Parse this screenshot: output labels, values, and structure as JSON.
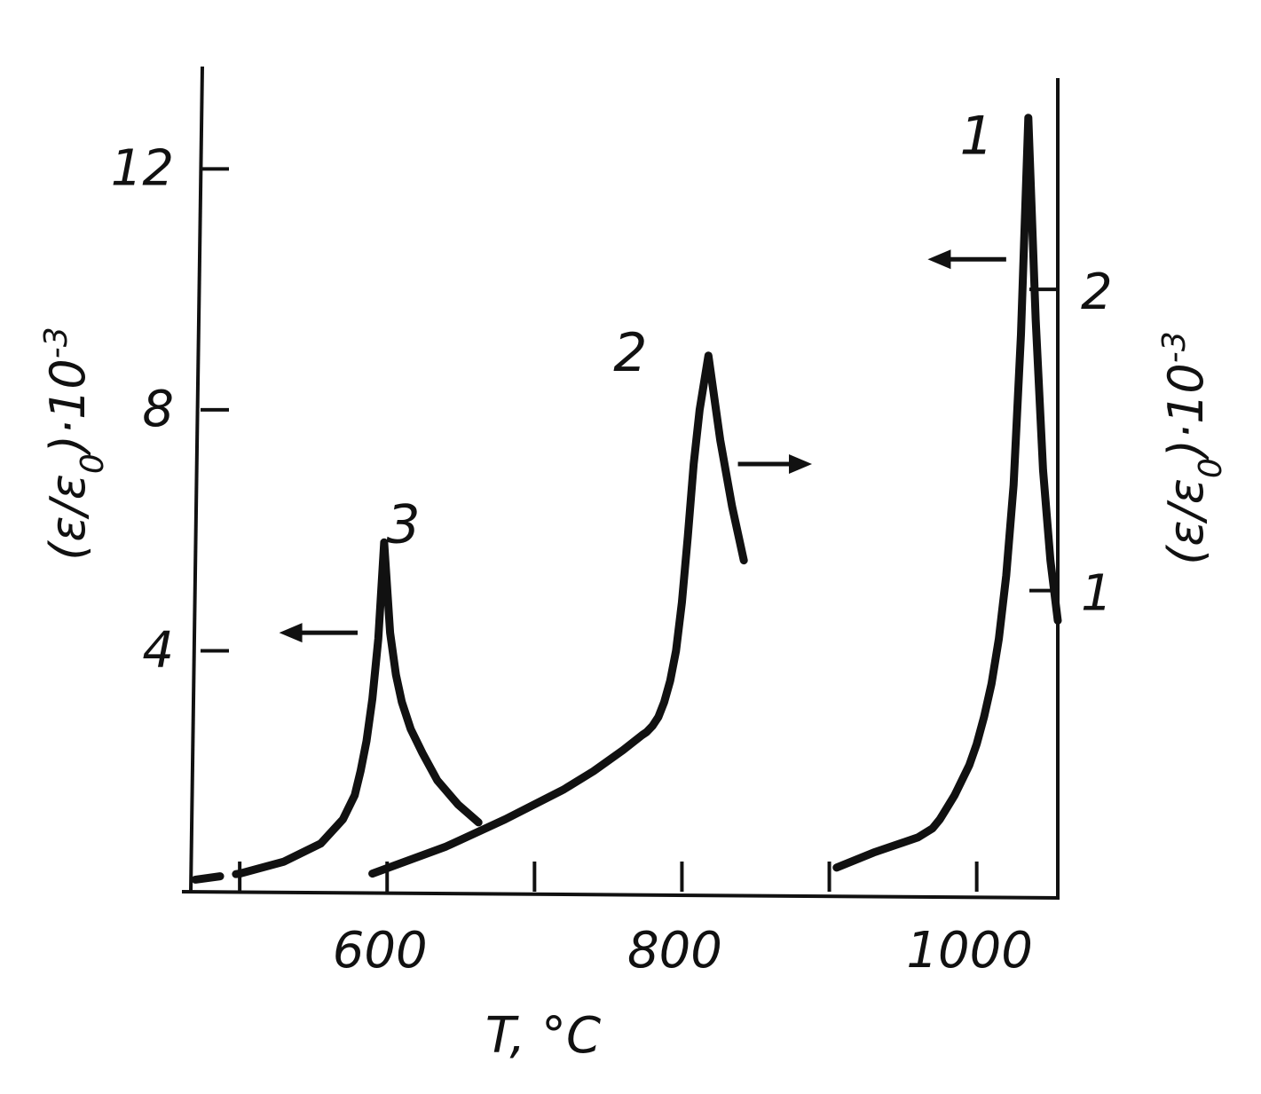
{
  "chart_data": {
    "type": "line",
    "xlabel": "T, °C",
    "ylabel_left": {
      "text": "(ε/ε",
      "sub": "0",
      "mid": ")·10",
      "sup": "-3"
    },
    "ylabel_right": {
      "text": "(ε/ε",
      "sub": "0",
      "mid": ")·10",
      "sup": "-3"
    },
    "x_ticks": [
      600,
      800,
      1000
    ],
    "x_minor_ticks": [
      500,
      700,
      900
    ],
    "xlim": [
      465,
      1055
    ],
    "y_left_ticks": [
      4,
      8,
      12
    ],
    "y_left_lim": [
      0,
      13.7
    ],
    "y_right_ticks": [
      1,
      2
    ],
    "y_right_lim": [
      0,
      2.74
    ],
    "grid": false,
    "series": [
      {
        "name": "1",
        "axis": "right",
        "dashed_x_max": 900,
        "x": [
          905,
          930,
          960,
          970,
          975,
          980,
          985,
          990,
          995,
          1000,
          1005,
          1010,
          1015,
          1020,
          1025,
          1030,
          1035,
          1040,
          1045,
          1050,
          1055
        ],
        "y": [
          0.08,
          0.13,
          0.18,
          0.21,
          0.24,
          0.28,
          0.32,
          0.37,
          0.42,
          0.49,
          0.58,
          0.69,
          0.84,
          1.05,
          1.35,
          1.85,
          2.57,
          1.9,
          1.4,
          1.1,
          0.9
        ]
      },
      {
        "name": "2",
        "axis": "right",
        "dashed_x_max": 600,
        "x": [
          590,
          640,
          680,
          720,
          740,
          760,
          773,
          776,
          780,
          784,
          788,
          792,
          796,
          800,
          804,
          808,
          812,
          818,
          826,
          834,
          842
        ],
        "y": [
          0.06,
          0.15,
          0.24,
          0.34,
          0.4,
          0.47,
          0.52,
          0.53,
          0.55,
          0.58,
          0.63,
          0.7,
          0.8,
          0.96,
          1.18,
          1.42,
          1.6,
          1.78,
          1.5,
          1.28,
          1.1
        ]
      },
      {
        "name": "3",
        "axis": "left",
        "dashed_x_max": 515,
        "x": [
          470,
          500,
          530,
          555,
          570,
          578,
          582,
          586,
          590,
          594,
          598,
          602,
          606,
          610,
          616,
          624,
          634,
          648,
          662
        ],
        "y": [
          0.2,
          0.3,
          0.5,
          0.8,
          1.2,
          1.6,
          2.0,
          2.5,
          3.2,
          4.2,
          5.8,
          4.3,
          3.6,
          3.15,
          2.7,
          2.3,
          1.85,
          1.45,
          1.15
        ]
      }
    ],
    "annotations": [
      {
        "text": "1",
        "x": 1000,
        "axis": "right",
        "y": 2.45
      },
      {
        "text": "2",
        "x": 765,
        "axis": "right",
        "y": 1.73
      },
      {
        "text": "3",
        "x": 611,
        "axis": "left",
        "y": 5.8
      }
    ],
    "arrows": [
      {
        "series": "1",
        "direction": "left",
        "from_x": 1020,
        "to_x": 980,
        "axis": "left",
        "y": 10.5
      },
      {
        "series": "2",
        "direction": "right",
        "from_x": 838,
        "to_x": 875,
        "axis": "right",
        "y": 1.42
      },
      {
        "series": "3",
        "direction": "left",
        "from_x": 580,
        "to_x": 540,
        "axis": "left",
        "y": 4.3
      }
    ],
    "colors": {
      "ink": "#111111",
      "background": "#ffffff"
    }
  }
}
